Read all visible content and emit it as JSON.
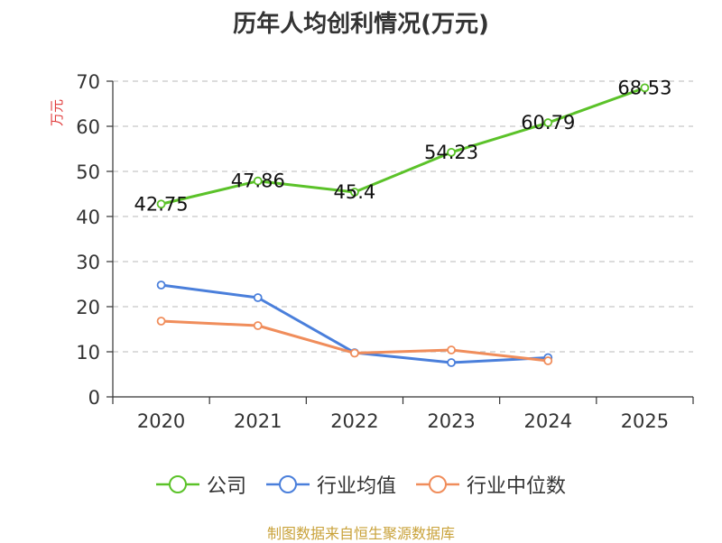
{
  "chart_data": {
    "type": "line",
    "title": "历年人均创利情况(万元)",
    "ylabel": "万元",
    "xlabel": "",
    "ylim": [
      0,
      70
    ],
    "yticks": [
      0,
      10,
      20,
      30,
      40,
      50,
      60,
      70
    ],
    "categories": [
      "2020",
      "2021",
      "2022",
      "2023",
      "2024",
      "2025"
    ],
    "grid": true,
    "legend_position": "bottom",
    "series": [
      {
        "name": "公司",
        "color": "#5bc229",
        "show_labels": true,
        "values": [
          42.75,
          47.86,
          45.4,
          54.23,
          60.79,
          68.53
        ]
      },
      {
        "name": "行业均值",
        "color": "#4a7fdb",
        "show_labels": false,
        "values": [
          24.8,
          22.0,
          9.8,
          7.6,
          8.7,
          null
        ]
      },
      {
        "name": "行业中位数",
        "color": "#f08d5b",
        "show_labels": false,
        "values": [
          16.8,
          15.8,
          9.7,
          10.4,
          8.0,
          null
        ]
      }
    ]
  },
  "source": "制图数据来自恒生聚源数据库"
}
